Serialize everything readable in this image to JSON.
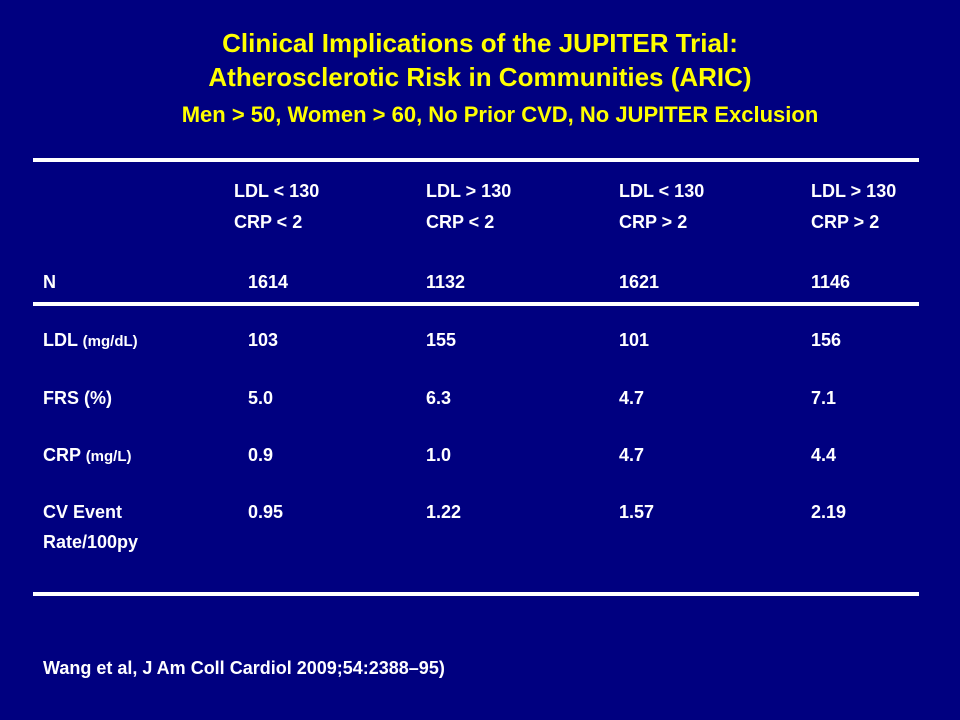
{
  "title": {
    "line1": "Clinical Implications of the JUPITER Trial:",
    "line2": "Atherosclerotic Risk in Communities (ARIC)",
    "line3": "Men > 50, Women > 60, No Prior CVD, No JUPITER Exclusion"
  },
  "columns": [
    {
      "ldl": "LDL < 130",
      "crp": "CRP < 2"
    },
    {
      "ldl": "LDL > 130",
      "crp": "CRP < 2"
    },
    {
      "ldl": "LDL < 130",
      "crp": "CRP > 2"
    },
    {
      "ldl": "LDL > 130",
      "crp": "CRP > 2"
    }
  ],
  "rows": [
    {
      "label": "N",
      "unit": "",
      "values": [
        "1614",
        "1132",
        "1621",
        "1146"
      ]
    },
    {
      "label": "LDL ",
      "unit": "(mg/dL)",
      "values": [
        "103",
        "155",
        "101",
        "156"
      ]
    },
    {
      "label": "FRS (%)",
      "unit": "",
      "values": [
        "5.0",
        "6.3",
        "4.7",
        "7.1"
      ]
    },
    {
      "label": "CRP ",
      "unit": "(mg/L)",
      "values": [
        "0.9",
        "1.0",
        "4.7",
        "4.4"
      ]
    },
    {
      "label": "CV Event",
      "label2": "Rate/100py",
      "unit": "",
      "values": [
        "0.95",
        "1.22",
        "1.57",
        "2.19"
      ]
    }
  ],
  "footnote": "Wang et al, J Am Coll Cardiol 2009;54:2388–95)",
  "colors": {
    "background": "#000080",
    "title": "#FFFF00",
    "text": "#FFFFFF"
  }
}
